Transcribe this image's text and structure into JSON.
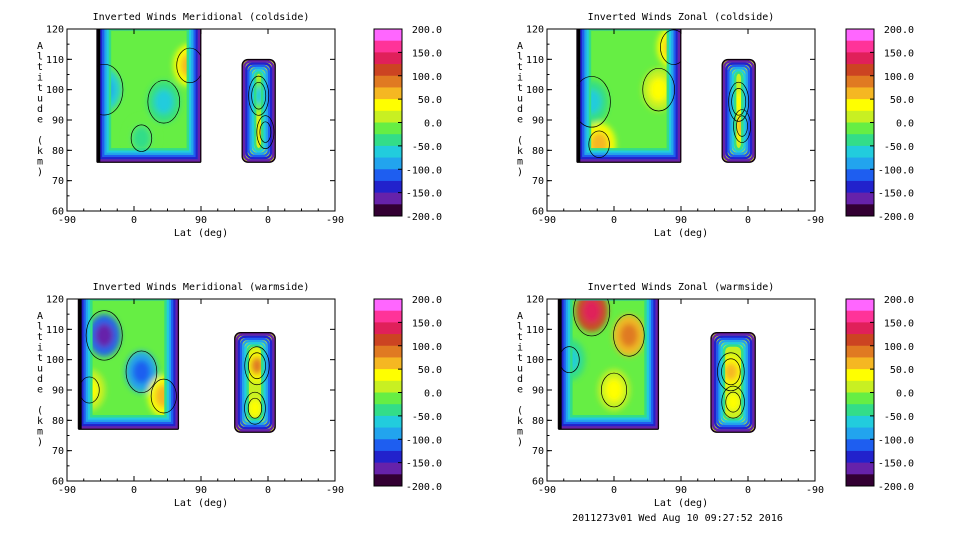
{
  "footer": "2011273v01 Wed Aug 10 09:27:52 2016",
  "colorbar": {
    "labels": [
      "200.0",
      "150.0",
      "100.0",
      "50.0",
      "0.0",
      "-50.0",
      "-100.0",
      "-150.0",
      "-200.0"
    ],
    "colors": [
      "#ff66ff",
      "#ff3399",
      "#e0205a",
      "#cc4422",
      "#e07a22",
      "#f5b722",
      "#ffff00",
      "#c8f022",
      "#66ee44",
      "#33dd88",
      "#22ccdd",
      "#22a4ee",
      "#1e5ef0",
      "#2222cc",
      "#6622aa",
      "#330033"
    ]
  },
  "chart_data": [
    {
      "type": "contour",
      "title": "Inverted Winds Meridional (coldside)",
      "xlabel": "Lat (deg)",
      "ylabel": "Altitude (km)",
      "x_ticks": [
        "-90",
        "0",
        "90",
        "0",
        "-90"
      ],
      "y_ticks": [
        "60",
        "70",
        "80",
        "90",
        "100",
        "110",
        "120"
      ],
      "ylim": [
        60,
        120
      ],
      "colorbar_range": [
        -200,
        200
      ],
      "regions": [
        {
          "lat_range": [
            -50,
            90
          ],
          "alt_range": [
            76,
            120
          ]
        },
        {
          "lat_range": [
            -10,
            35
          ],
          "alt_range": [
            76,
            110
          ],
          "x_axis": "descending-from-90"
        }
      ]
    },
    {
      "type": "contour",
      "title": "Inverted Winds Zonal (coldside)",
      "xlabel": "Lat (deg)",
      "ylabel": "Altitude (km)",
      "x_ticks": [
        "-90",
        "0",
        "90",
        "0",
        "-90"
      ],
      "y_ticks": [
        "60",
        "70",
        "80",
        "90",
        "100",
        "110",
        "120"
      ],
      "ylim": [
        60,
        120
      ],
      "colorbar_range": [
        -200,
        200
      ],
      "regions": [
        {
          "lat_range": [
            -50,
            90
          ],
          "alt_range": [
            76,
            120
          ]
        },
        {
          "lat_range": [
            -10,
            35
          ],
          "alt_range": [
            76,
            110
          ],
          "x_axis": "descending-from-90"
        }
      ]
    },
    {
      "type": "contour",
      "title": "Inverted Winds Meridional (warmside)",
      "xlabel": "Lat (deg)",
      "ylabel": "Altitude (km)",
      "x_ticks": [
        "-90",
        "0",
        "90",
        "0",
        "-90"
      ],
      "y_ticks": [
        "60",
        "70",
        "80",
        "90",
        "100",
        "110",
        "120"
      ],
      "ylim": [
        60,
        120
      ],
      "colorbar_range": [
        -200,
        200
      ],
      "regions": [
        {
          "lat_range": [
            -75,
            60
          ],
          "alt_range": [
            77,
            120
          ]
        },
        {
          "lat_range": [
            -10,
            45
          ],
          "alt_range": [
            76,
            109
          ],
          "x_axis": "descending-from-90"
        }
      ]
    },
    {
      "type": "contour",
      "title": "Inverted Winds Zonal (warmside)",
      "xlabel": "Lat (deg)",
      "ylabel": "Altitude (km)",
      "x_ticks": [
        "-90",
        "0",
        "90",
        "0",
        "-90"
      ],
      "y_ticks": [
        "60",
        "70",
        "80",
        "90",
        "100",
        "110",
        "120"
      ],
      "ylim": [
        60,
        120
      ],
      "colorbar_range": [
        -200,
        200
      ],
      "regions": [
        {
          "lat_range": [
            -75,
            60
          ],
          "alt_range": [
            77,
            120
          ]
        },
        {
          "lat_range": [
            -10,
            50
          ],
          "alt_range": [
            76,
            109
          ],
          "x_axis": "descending-from-90"
        }
      ]
    }
  ]
}
